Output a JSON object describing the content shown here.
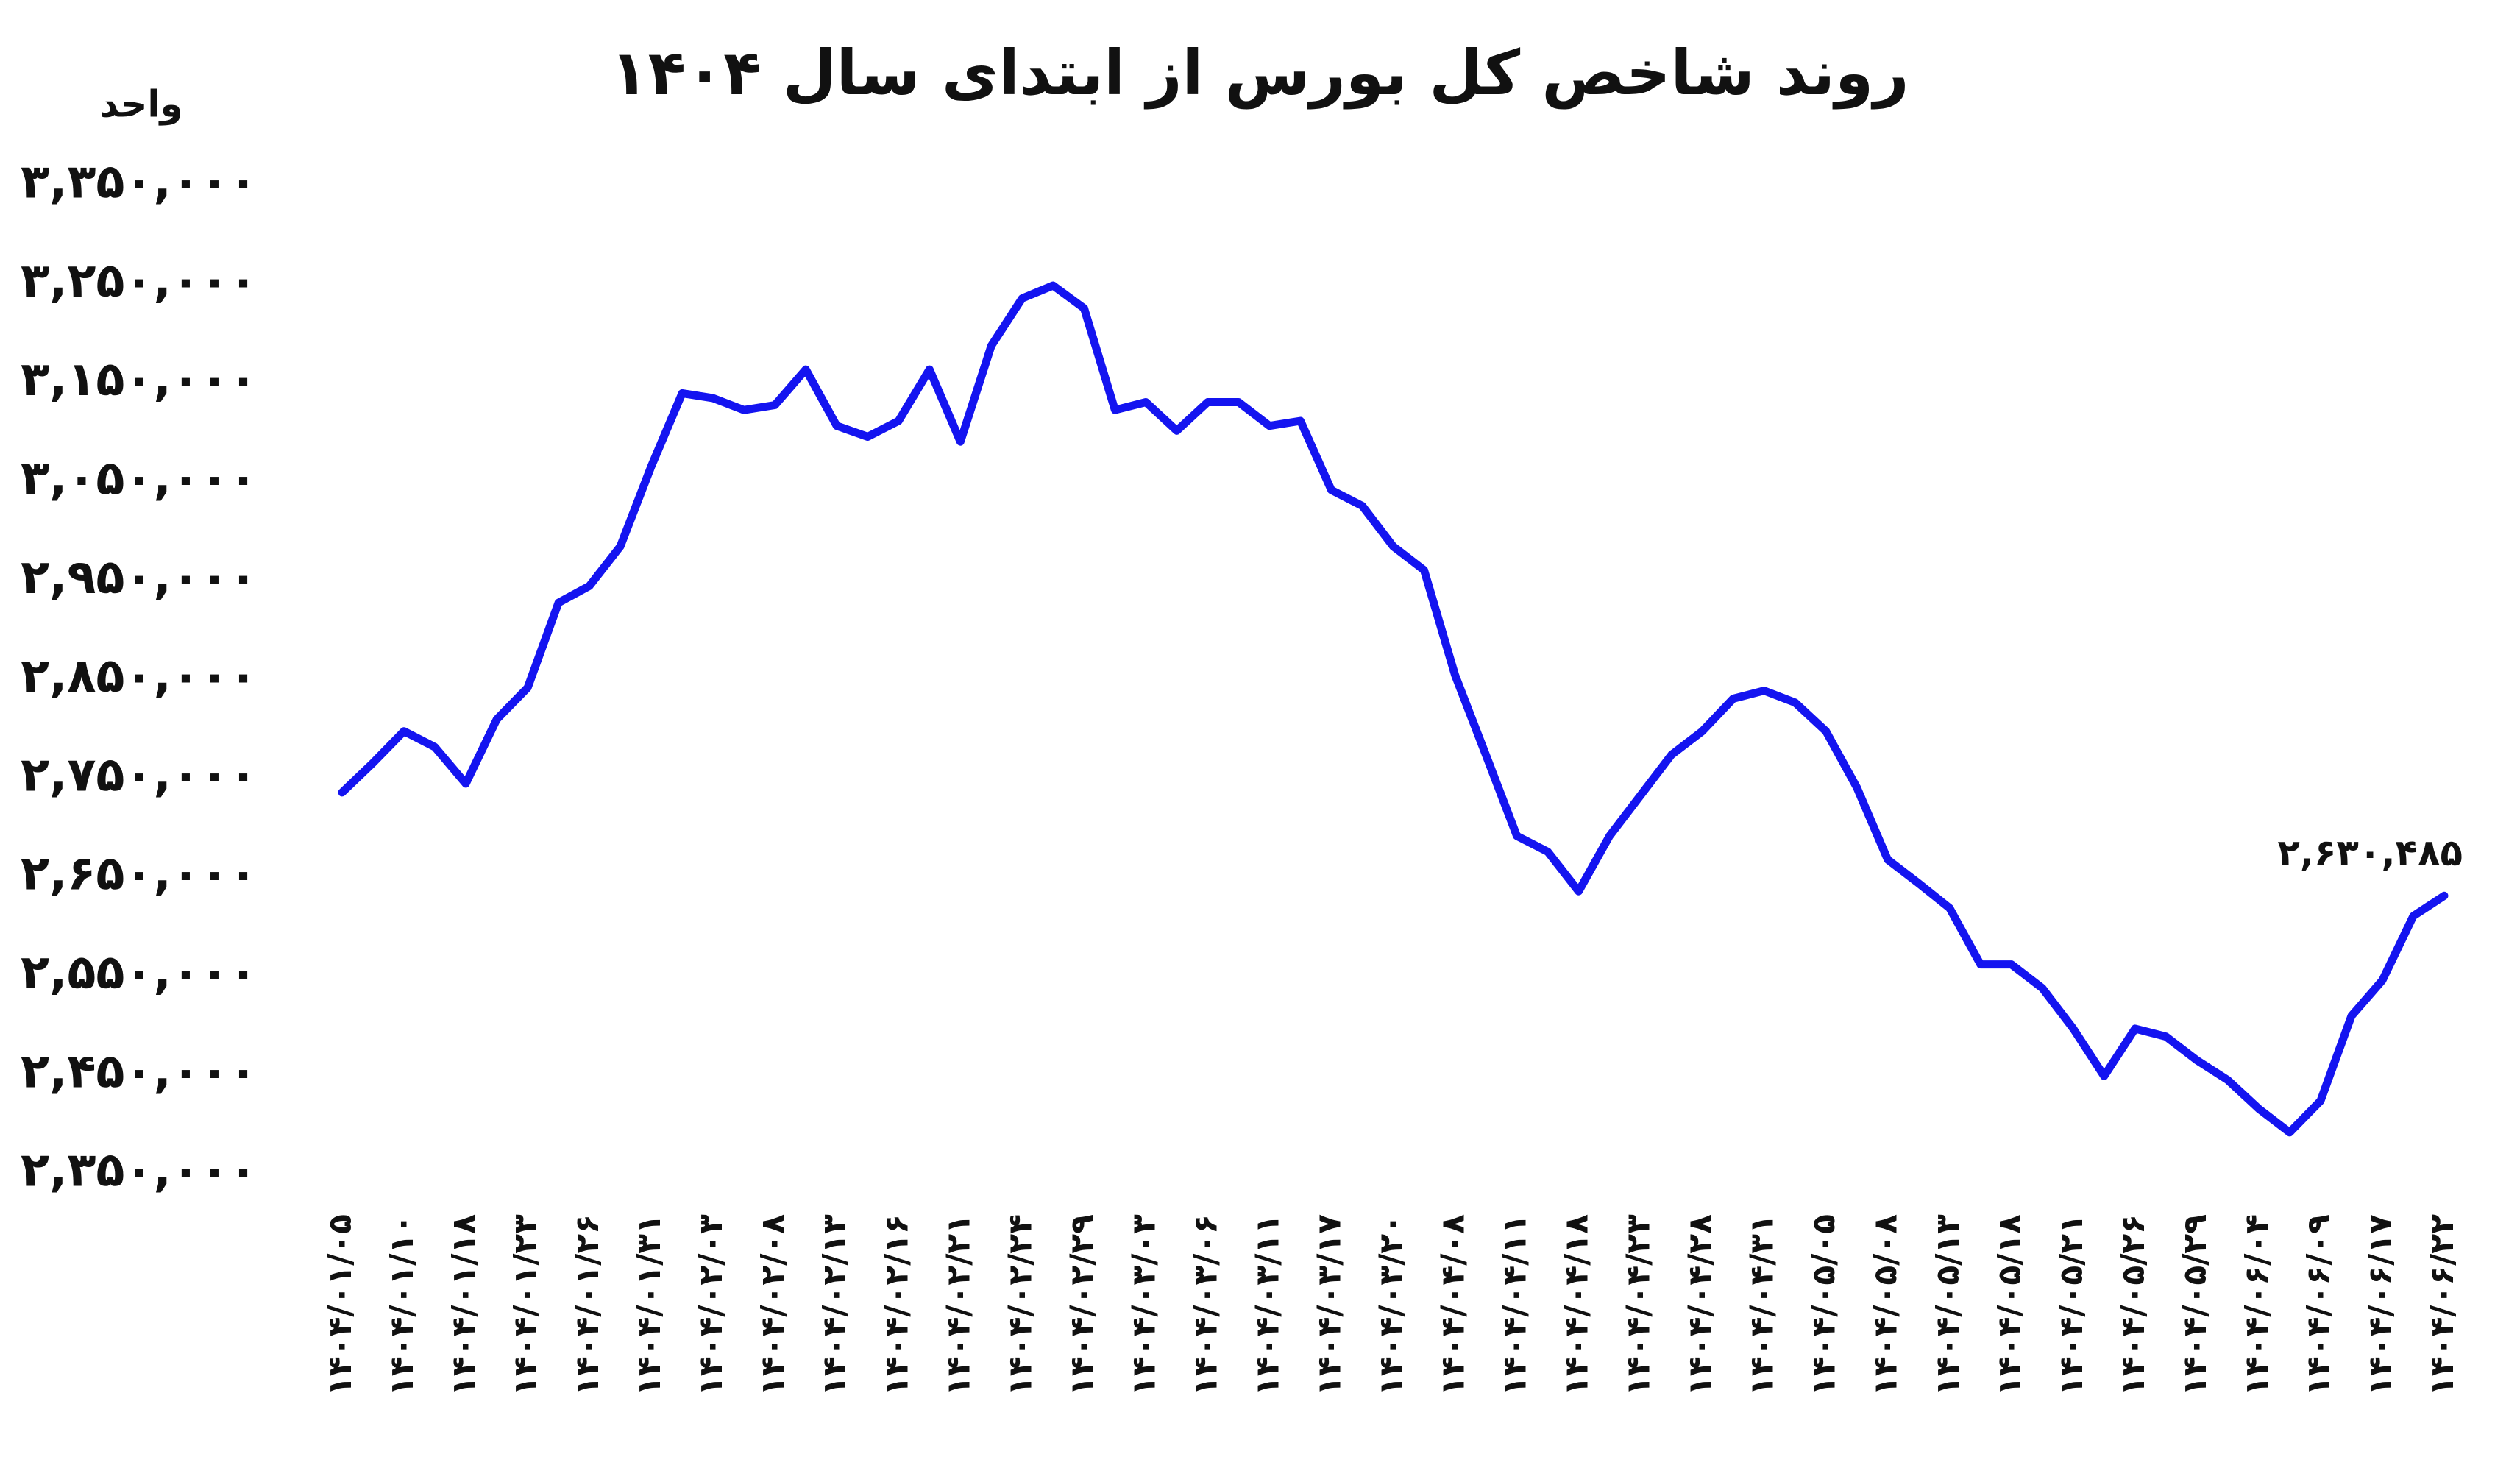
{
  "chart_data": {
    "type": "line",
    "title": "روند شاخص کل بورس از ابتدای سال ۱۴۰۴",
    "y_unit": "واحد",
    "categories": [
      "۱۴۰۴/۰۱/۰۵",
      null,
      "۱۴۰۴/۰۱/۱۰",
      null,
      "۱۴۰۴/۰۱/۱۸",
      null,
      "۱۴۰۴/۰۱/۲۳",
      null,
      "۱۴۰۴/۰۱/۲۶",
      null,
      "۱۴۰۴/۰۱/۳۱",
      null,
      "۱۴۰۴/۰۲/۰۳",
      null,
      "۱۴۰۴/۰۲/۰۸",
      null,
      "۱۴۰۴/۰۲/۱۳",
      null,
      "۱۴۰۴/۰۲/۱۶",
      null,
      "۱۴۰۴/۰۲/۲۱",
      null,
      "۱۴۰۴/۰۲/۲۴",
      null,
      "۱۴۰۴/۰۲/۲۹",
      null,
      "۱۴۰۴/۰۳/۰۳",
      null,
      "۱۴۰۴/۰۳/۰۶",
      null,
      "۱۴۰۴/۰۳/۱۱",
      null,
      "۱۴۰۴/۰۳/۱۷",
      null,
      "۱۴۰۴/۰۳/۲۰",
      null,
      "۱۴۰۴/۰۴/۰۸",
      null,
      "۱۴۰۴/۰۴/۱۱",
      null,
      "۱۴۰۴/۰۴/۱۸",
      null,
      "۱۴۰۴/۰۴/۲۳",
      null,
      "۱۴۰۴/۰۴/۲۸",
      null,
      "۱۴۰۴/۰۴/۳۱",
      null,
      "۱۴۰۴/۰۵/۰۵",
      null,
      "۱۴۰۴/۰۵/۰۸",
      null,
      "۱۴۰۴/۰۵/۱۳",
      null,
      "۱۴۰۴/۰۵/۱۸",
      null,
      "۱۴۰۴/۰۵/۲۱",
      null,
      "۱۴۰۴/۰۵/۲۶",
      null,
      "۱۴۰۴/۰۵/۲۹",
      null,
      "۱۴۰۴/۰۶/۰۴",
      null,
      "۱۴۰۴/۰۶/۰۹",
      null,
      "۱۴۰۴/۰۶/۱۷",
      null,
      "۱۴۰۴/۰۶/۲۲"
    ],
    "series": [
      {
        "name": "شاخص کل",
        "color": "#1414f0",
        "values": [
          2735000,
          2765000,
          2797000,
          2781000,
          2744000,
          2809000,
          2841000,
          2927000,
          2944000,
          2984000,
          3065000,
          3139000,
          3134000,
          3122000,
          3127000,
          3163000,
          3106000,
          3095000,
          3111000,
          3163000,
          3090000,
          3187000,
          3235000,
          3248000,
          3225000,
          3122000,
          3130000,
          3101000,
          3130000,
          3130000,
          3106000,
          3111000,
          3041000,
          3025000,
          2984000,
          2960000,
          2854000,
          2773000,
          2691000,
          2675000,
          2635000,
          2691000,
          2732000,
          2773000,
          2797000,
          2830000,
          2838000,
          2826000,
          2797000,
          2740000,
          2667000,
          2643000,
          2618000,
          2561000,
          2561000,
          2537000,
          2496000,
          2448000,
          2496000,
          2488000,
          2464000,
          2444000,
          2415000,
          2391000,
          2423000,
          2509000,
          2545000,
          2610000,
          2630485
        ],
        "value_labels": [
          null,
          null,
          null,
          null,
          null,
          null,
          null,
          null,
          null,
          null,
          null,
          null,
          null,
          null,
          null,
          null,
          null,
          null,
          null,
          null,
          null,
          null,
          null,
          null,
          null,
          null,
          null,
          null,
          null,
          null,
          null,
          null,
          null,
          null,
          null,
          null,
          null,
          null,
          null,
          null,
          null,
          null,
          null,
          null,
          null,
          null,
          null,
          null,
          null,
          null,
          null,
          null,
          null,
          null,
          null,
          null,
          null,
          null,
          null,
          null,
          null,
          null,
          null,
          null,
          null,
          null,
          null,
          null,
          "۲,۶۳۰,۴۸۵"
        ]
      }
    ],
    "ylim": [
      2350000,
      3350000
    ],
    "yticks": [
      {
        "value": 2350000,
        "label": "۲,۳۵۰,۰۰۰"
      },
      {
        "value": 2450000,
        "label": "۲,۴۵۰,۰۰۰"
      },
      {
        "value": 2550000,
        "label": "۲,۵۵۰,۰۰۰"
      },
      {
        "value": 2650000,
        "label": "۲,۶۵۰,۰۰۰"
      },
      {
        "value": 2750000,
        "label": "۲,۷۵۰,۰۰۰"
      },
      {
        "value": 2850000,
        "label": "۲,۸۵۰,۰۰۰"
      },
      {
        "value": 2950000,
        "label": "۲,۹۵۰,۰۰۰"
      },
      {
        "value": 3050000,
        "label": "۳,۰۵۰,۰۰۰"
      },
      {
        "value": 3150000,
        "label": "۳,۱۵۰,۰۰۰"
      },
      {
        "value": 3250000,
        "label": "۳,۲۵۰,۰۰۰"
      },
      {
        "value": 3350000,
        "label": "۳,۳۵۰,۰۰۰"
      }
    ],
    "grid": false
  }
}
